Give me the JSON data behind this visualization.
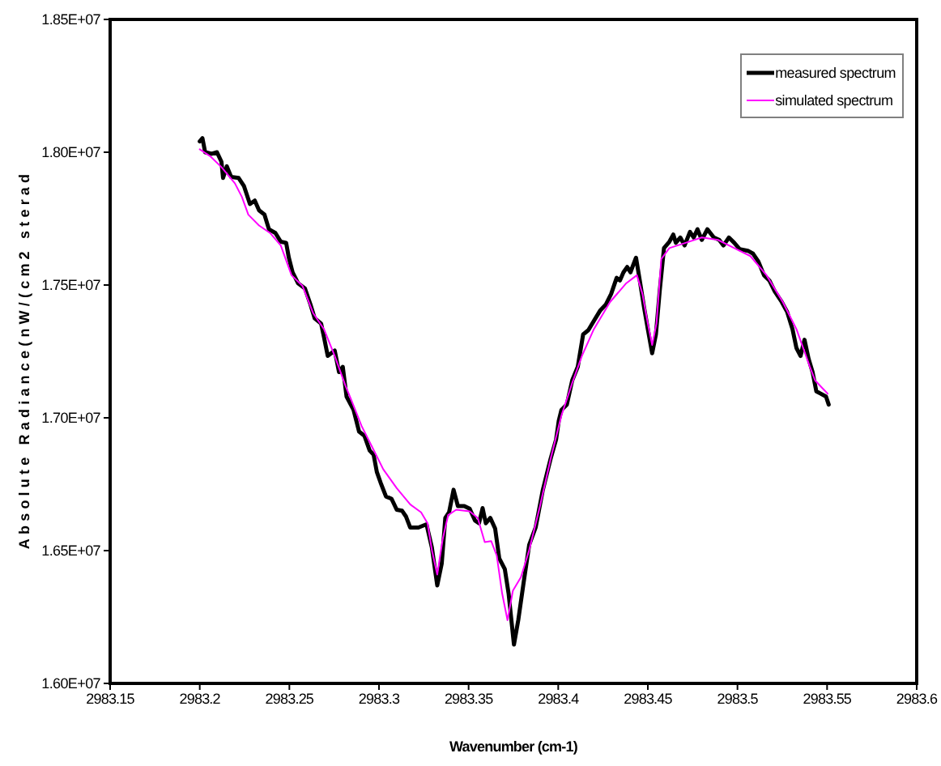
{
  "chart_data": {
    "type": "line",
    "xlabel": "Wavenumber (cm-1)",
    "ylabel": "Absolute Radiance(nW/(cm2 sterad",
    "xlim": [
      2983.15,
      2983.6
    ],
    "xticks": [
      2983.15,
      2983.2,
      2983.25,
      2983.3,
      2983.35,
      2983.4,
      2983.45,
      2983.5,
      2983.55,
      2983.6
    ],
    "ylim": [
      16000000,
      18500000
    ],
    "yticks": [
      {
        "value": 16000000,
        "label": "1.60E+07"
      },
      {
        "value": 16500000,
        "label": "1.65E+07"
      },
      {
        "value": 17000000,
        "label": "1.70E+07"
      },
      {
        "value": 17500000,
        "label": "1.75E+07"
      },
      {
        "value": 18000000,
        "label": "1.80E+07"
      },
      {
        "value": 18500000,
        "label": "1.85E+07"
      }
    ],
    "legend": "top right",
    "series": [
      {
        "name": "measured spectrum",
        "color": "#000000",
        "x": [
          2983.2,
          2983.2015,
          2983.203,
          2983.2067,
          2983.2096,
          2983.2121,
          2983.213,
          2983.2151,
          2983.2175,
          2983.2217,
          2983.2247,
          2983.228,
          2983.2307,
          2983.2331,
          2983.2361,
          2983.2386,
          2983.2422,
          2983.2452,
          2983.2482,
          2983.2497,
          2983.2518,
          2983.2548,
          2983.2587,
          2983.2618,
          2983.2641,
          2983.2677,
          2983.2693,
          2983.2714,
          2983.2753,
          2983.2777,
          2983.2798,
          2983.2819,
          2983.2858,
          2983.2889,
          2983.2919,
          2983.2948,
          2983.297,
          2983.2988,
          2983.3009,
          2983.3039,
          2983.307,
          2983.3099,
          2983.3129,
          2983.3151,
          2983.3174,
          2983.322,
          2983.3265,
          2983.3295,
          2983.3325,
          2983.335,
          2983.337,
          2983.3391,
          2983.3416,
          2983.344,
          2983.3476,
          2983.3506,
          2983.3536,
          2983.3558,
          2983.3578,
          2983.3596,
          2983.3621,
          2983.3648,
          2983.3671,
          2983.3702,
          2983.3723,
          2983.3753,
          2983.3777,
          2983.3807,
          2983.3838,
          2983.3874,
          2983.3913,
          2983.3958,
          2983.3988,
          2983.4003,
          2983.4018,
          2983.4048,
          2983.4078,
          2983.4109,
          2983.4139,
          2983.4168,
          2983.4199,
          2983.4235,
          2983.4265,
          2983.4295,
          2983.4326,
          2983.4344,
          2983.4364,
          2983.4385,
          2983.4403,
          2983.4434,
          2983.4455,
          2983.4479,
          2983.45,
          2983.4524,
          2983.4545,
          2983.4566,
          2983.459,
          2983.462,
          2983.4642,
          2983.4656,
          2983.4681,
          2983.4705,
          2983.4735,
          2983.4756,
          2983.4777,
          2983.4801,
          2983.4832,
          2983.4868,
          2983.4898,
          2983.4922,
          2983.4952,
          2983.4982,
          2983.5012,
          2983.5058,
          2983.5087,
          2983.5117,
          2983.5148,
          2983.5178,
          2983.5208,
          2983.5247,
          2983.5277,
          2983.5307,
          2983.5329,
          2983.5352,
          2983.5374,
          2983.5397,
          2983.5419,
          2983.544,
          2983.5464,
          2983.5494,
          2983.5509
        ],
        "values": [
          18041000,
          18053000,
          18000000,
          17994000,
          18000000,
          17964000,
          17903000,
          17947000,
          17907000,
          17903000,
          17872000,
          17805000,
          17818000,
          17781000,
          17765000,
          17710000,
          17696000,
          17663000,
          17659000,
          17603000,
          17548000,
          17507000,
          17487000,
          17426000,
          17375000,
          17355000,
          17304000,
          17233000,
          17253000,
          17172000,
          17192000,
          17080000,
          17030000,
          16948000,
          16932000,
          16877000,
          16861000,
          16796000,
          16756000,
          16704000,
          16695000,
          16654000,
          16650000,
          16628000,
          16587000,
          16587000,
          16599000,
          16512000,
          16369000,
          16451000,
          16623000,
          16644000,
          16729000,
          16668000,
          16668000,
          16658000,
          16613000,
          16603000,
          16660000,
          16603000,
          16623000,
          16583000,
          16471000,
          16430000,
          16339000,
          16146000,
          16238000,
          16380000,
          16522000,
          16587000,
          16725000,
          16847000,
          16918000,
          16989000,
          17030000,
          17050000,
          17141000,
          17192000,
          17314000,
          17330000,
          17365000,
          17405000,
          17426000,
          17466000,
          17527000,
          17517000,
          17548000,
          17568000,
          17548000,
          17603000,
          17517000,
          17415000,
          17334000,
          17243000,
          17314000,
          17476000,
          17639000,
          17663000,
          17690000,
          17659000,
          17679000,
          17649000,
          17700000,
          17679000,
          17710000,
          17670000,
          17710000,
          17679000,
          17670000,
          17649000,
          17679000,
          17659000,
          17635000,
          17629000,
          17618000,
          17588000,
          17537000,
          17517000,
          17476000,
          17436000,
          17399000,
          17334000,
          17263000,
          17233000,
          17294000,
          17222000,
          17172000,
          17100000,
          17091000,
          17080000,
          17050000
        ]
      },
      {
        "name": "simulated spectrum",
        "color": "#ff00ff",
        "x": [
          2983.2,
          2983.206,
          2983.2121,
          2983.2196,
          2983.2235,
          2983.2271,
          2983.2331,
          2983.2392,
          2983.2452,
          2983.2512,
          2983.2573,
          2983.2632,
          2983.2693,
          2983.2753,
          2983.2813,
          2983.2844,
          2983.2903,
          2983.2964,
          2983.3024,
          2983.3099,
          2983.3174,
          2983.3235,
          2983.3271,
          2983.3295,
          2983.3325,
          2983.3355,
          2983.3386,
          2983.3431,
          2983.3506,
          2983.3551,
          2983.359,
          2983.3626,
          2983.3657,
          2983.3687,
          2983.3717,
          2983.3747,
          2983.3792,
          2983.3838,
          2983.3897,
          2983.3958,
          2983.4018,
          2983.4078,
          2983.4132,
          2983.4199,
          2983.4289,
          2983.438,
          2983.4439,
          2983.447,
          2983.45,
          2983.4524,
          2983.4548,
          2983.4575,
          2983.462,
          2983.4711,
          2983.4801,
          2983.4891,
          2983.4982,
          2983.5072,
          2983.5162,
          2983.5253,
          2983.5329,
          2983.5404,
          2983.5433,
          2983.5503
        ],
        "values": [
          18011000,
          17984000,
          17944000,
          17883000,
          17832000,
          17765000,
          17724000,
          17696000,
          17649000,
          17537000,
          17497000,
          17395000,
          17334000,
          17233000,
          17121000,
          17070000,
          16969000,
          16887000,
          16806000,
          16735000,
          16674000,
          16644000,
          16603000,
          16502000,
          16410000,
          16542000,
          16634000,
          16654000,
          16648000,
          16623000,
          16532000,
          16536000,
          16481000,
          16339000,
          16238000,
          16349000,
          16400000,
          16502000,
          16664000,
          16847000,
          17009000,
          17131000,
          17233000,
          17334000,
          17436000,
          17507000,
          17537000,
          17466000,
          17355000,
          17274000,
          17355000,
          17598000,
          17639000,
          17659000,
          17679000,
          17670000,
          17639000,
          17609000,
          17537000,
          17436000,
          17334000,
          17192000,
          17141000,
          17091000
        ]
      }
    ]
  }
}
